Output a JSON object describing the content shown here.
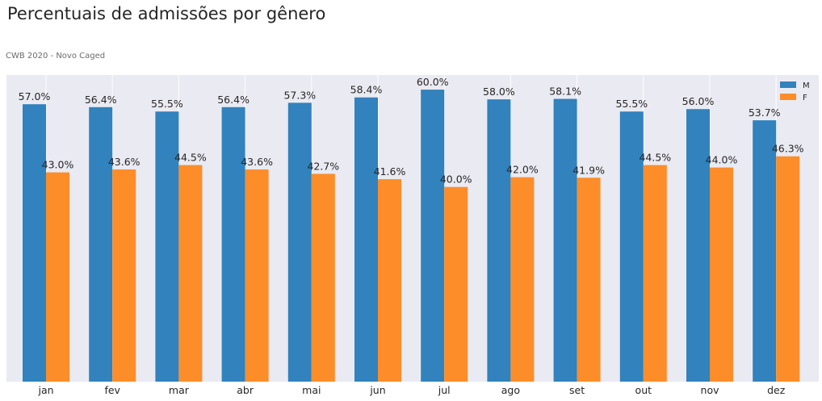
{
  "chart_data": {
    "type": "bar",
    "title": "Percentuais de admissões por gênero",
    "subtitle": "CWB 2020 - Novo Caged",
    "categories": [
      "jan",
      "fev",
      "mar",
      "abr",
      "mai",
      "jun",
      "jul",
      "ago",
      "set",
      "out",
      "nov",
      "dez"
    ],
    "series": [
      {
        "name": "M",
        "color": "#3182bd",
        "values": [
          57.0,
          56.4,
          55.5,
          56.4,
          57.3,
          58.4,
          60.0,
          58.0,
          58.1,
          55.5,
          56.0,
          53.7
        ],
        "labels": [
          "57.0%",
          "56.4%",
          "55.5%",
          "56.4%",
          "57.3%",
          "58.4%",
          "60.0%",
          "58.0%",
          "58.1%",
          "55.5%",
          "56.0%",
          "53.7%"
        ]
      },
      {
        "name": "F",
        "color": "#fd8d29",
        "values": [
          43.0,
          43.6,
          44.5,
          43.6,
          42.7,
          41.6,
          40.0,
          42.0,
          41.9,
          44.5,
          44.0,
          46.3
        ],
        "labels": [
          "43.0%",
          "43.6%",
          "44.5%",
          "43.6%",
          "42.7%",
          "41.6%",
          "40.0%",
          "42.0%",
          "41.9%",
          "44.5%",
          "44.0%",
          "46.3%"
        ]
      }
    ],
    "ylim": [
      0,
      63
    ],
    "y_ticks_visible": false,
    "grid": true,
    "background": "#eaeaf2",
    "legend_position": "top-right"
  }
}
